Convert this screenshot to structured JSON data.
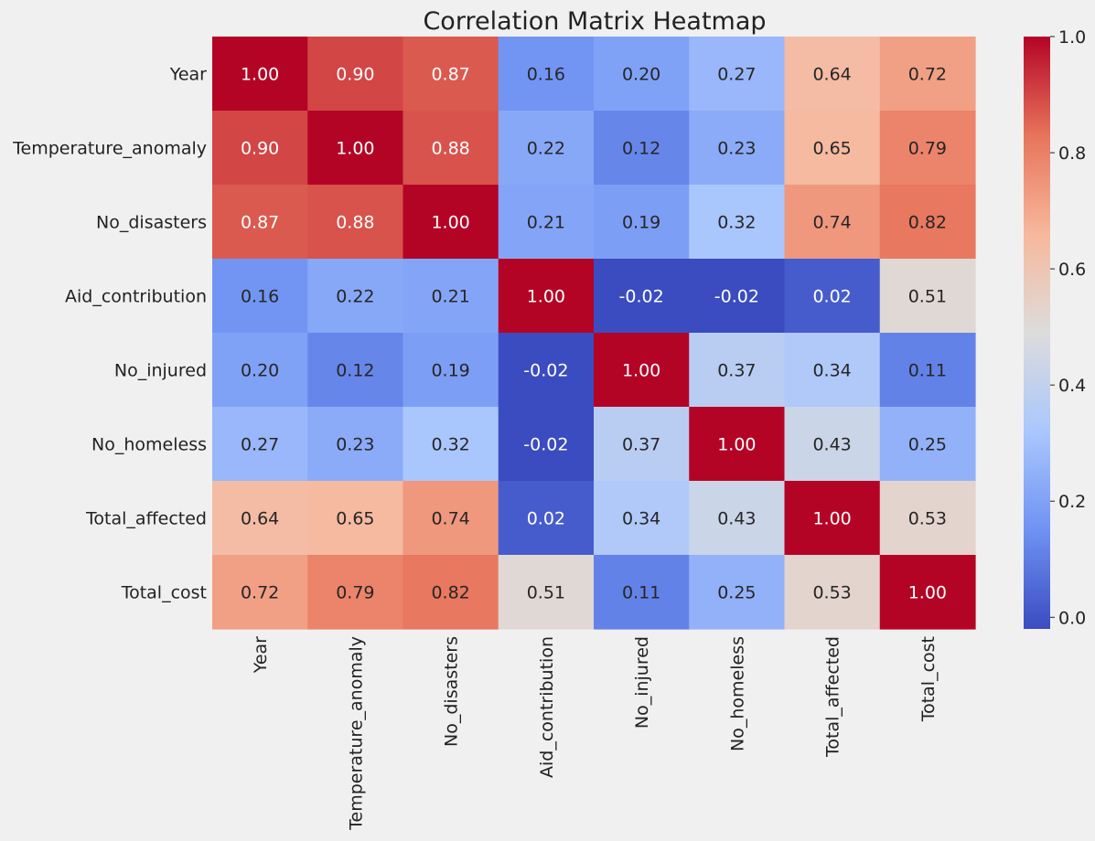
{
  "chart_data": {
    "type": "heatmap",
    "title": "Correlation Matrix Heatmap",
    "row_labels": [
      "Year",
      "Temperature_anomaly",
      "No_disasters",
      "Aid_contribution",
      "No_injured",
      "No_homeless",
      "Total_affected",
      "Total_cost"
    ],
    "col_labels": [
      "Year",
      "Temperature_anomaly",
      "No_disasters",
      "Aid_contribution",
      "No_injured",
      "No_homeless",
      "Total_affected",
      "Total_cost"
    ],
    "values": [
      [
        1.0,
        0.9,
        0.87,
        0.16,
        0.2,
        0.27,
        0.64,
        0.72
      ],
      [
        0.9,
        1.0,
        0.88,
        0.22,
        0.12,
        0.23,
        0.65,
        0.79
      ],
      [
        0.87,
        0.88,
        1.0,
        0.21,
        0.19,
        0.32,
        0.74,
        0.82
      ],
      [
        0.16,
        0.22,
        0.21,
        1.0,
        -0.02,
        -0.02,
        0.02,
        0.51
      ],
      [
        0.2,
        0.12,
        0.19,
        -0.02,
        1.0,
        0.37,
        0.34,
        0.11
      ],
      [
        0.27,
        0.23,
        0.32,
        -0.02,
        0.37,
        1.0,
        0.43,
        0.25
      ],
      [
        0.64,
        0.65,
        0.74,
        0.02,
        0.34,
        0.43,
        1.0,
        0.53
      ],
      [
        0.72,
        0.79,
        0.82,
        0.51,
        0.11,
        0.25,
        0.53,
        1.0
      ]
    ],
    "value_format": "0.00",
    "colormap": "coolwarm",
    "vmin": -0.02,
    "vmax": 1.0,
    "colorbar": {
      "ticks": [
        0.0,
        0.2,
        0.4,
        0.6,
        0.8,
        1.0
      ],
      "tick_labels": [
        "0.0",
        "0.2",
        "0.4",
        "0.6",
        "0.8",
        "1.0"
      ],
      "placement": "right"
    },
    "background_color": "#f0f0f0",
    "colormap_stops": [
      "#3b4cc0",
      "#6f92f3",
      "#aac7fd",
      "#dddcdc",
      "#f7b89c",
      "#e7745b",
      "#b40426"
    ]
  }
}
